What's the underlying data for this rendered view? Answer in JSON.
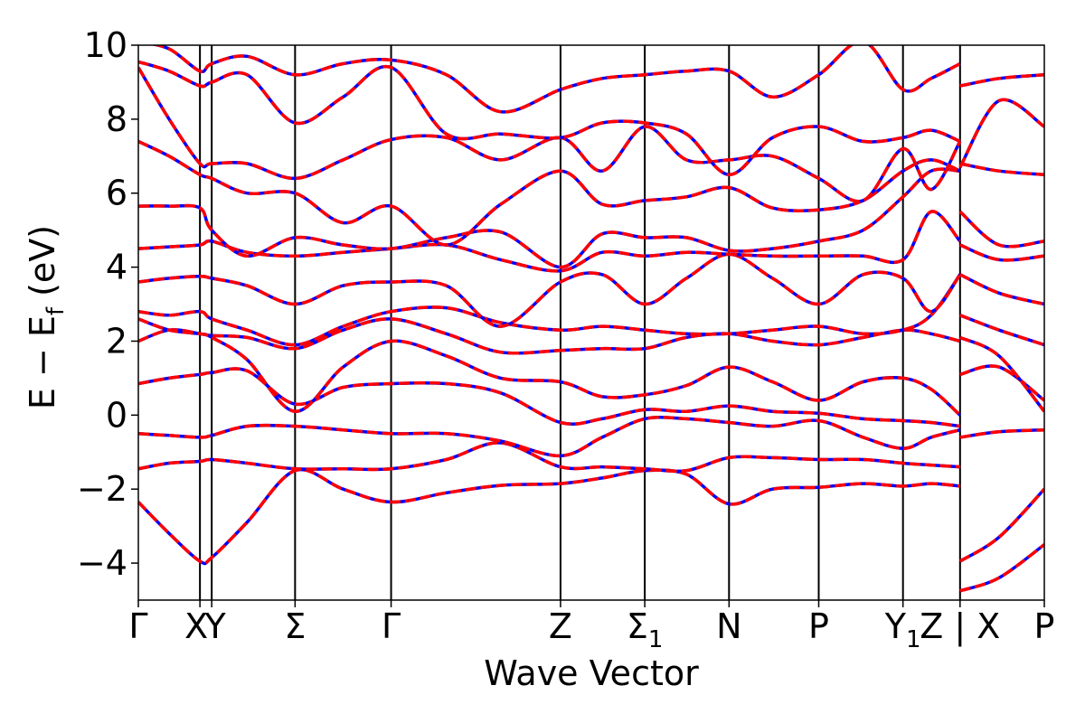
{
  "chart_data": {
    "type": "line",
    "title": "",
    "xlabel": "Wave Vector",
    "ylabel": "E − E_f (eV)",
    "ylabel_parts": {
      "base": "E − E",
      "sub": "f",
      "unit": "(eV)"
    },
    "ylim": [
      -5,
      10
    ],
    "yticks": [
      -4,
      -2,
      0,
      2,
      4,
      6,
      8,
      10
    ],
    "ytick_labels": [
      "−4",
      "−2",
      "0",
      "2",
      "4",
      "6",
      "8",
      "10"
    ],
    "grid": false,
    "legend": "none",
    "colors": {
      "band_solid": "#ff0000",
      "band_dashed": "#0000ff",
      "kpath_line": "#000000"
    },
    "kpoints": [
      {
        "x": 0.0,
        "label": "Γ"
      },
      {
        "x": 0.068,
        "label": "X"
      },
      {
        "x": 0.081,
        "label": "Y"
      },
      {
        "x": 0.173,
        "label": "Σ"
      },
      {
        "x": 0.279,
        "label": "Γ"
      },
      {
        "x": 0.466,
        "label": "Z"
      },
      {
        "x": 0.559,
        "label": "Σ",
        "sub": "1"
      },
      {
        "x": 0.652,
        "label": "N"
      },
      {
        "x": 0.751,
        "label": "P"
      },
      {
        "x": 0.844,
        "label": "Y",
        "sub": "1"
      },
      {
        "x": 0.907,
        "label": "Z | X"
      },
      {
        "x": 1.0,
        "label": "P"
      }
    ],
    "series": [
      {
        "x": [
          0.0,
          0.034,
          0.068,
          0.081,
          0.12,
          0.173,
          0.226,
          0.279,
          0.34,
          0.4,
          0.466,
          0.512,
          0.559,
          0.605,
          0.652,
          0.7,
          0.751,
          0.8,
          0.844,
          0.875,
          0.907
        ],
        "y": [
          -2.35,
          -3.2,
          -3.95,
          -3.85,
          -2.9,
          -1.5,
          -2.0,
          -2.35,
          -2.1,
          -1.9,
          -1.85,
          -1.7,
          -1.5,
          -1.6,
          -2.4,
          -2.0,
          -1.95,
          -1.85,
          -1.92,
          -1.85,
          -1.92
        ]
      },
      {
        "x": [
          0.0,
          0.034,
          0.068,
          0.081,
          0.12,
          0.173,
          0.226,
          0.279,
          0.34,
          0.4,
          0.466,
          0.512,
          0.559,
          0.605,
          0.652,
          0.7,
          0.751,
          0.8,
          0.844,
          0.875,
          0.907
        ],
        "y": [
          -1.45,
          -1.3,
          -1.25,
          -1.2,
          -1.3,
          -1.45,
          -1.45,
          -1.45,
          -1.2,
          -0.75,
          -1.4,
          -1.4,
          -1.45,
          -1.5,
          -1.15,
          -1.15,
          -1.2,
          -1.2,
          -1.3,
          -1.35,
          -1.4
        ]
      },
      {
        "x": [
          0.0,
          0.034,
          0.068,
          0.081,
          0.12,
          0.173,
          0.226,
          0.279,
          0.34,
          0.4,
          0.466,
          0.512,
          0.559,
          0.605,
          0.652,
          0.7,
          0.751,
          0.8,
          0.844,
          0.875,
          0.907
        ],
        "y": [
          -0.5,
          -0.55,
          -0.6,
          -0.55,
          -0.3,
          -0.3,
          -0.4,
          -0.5,
          -0.5,
          -0.7,
          -1.1,
          -0.6,
          -0.1,
          -0.1,
          -0.2,
          -0.3,
          -0.15,
          -0.6,
          -0.9,
          -0.6,
          -0.4
        ]
      },
      {
        "x": [
          0.0,
          0.034,
          0.068,
          0.081,
          0.12,
          0.173,
          0.226,
          0.279,
          0.34,
          0.4,
          0.466,
          0.512,
          0.559,
          0.605,
          0.652,
          0.7,
          0.751,
          0.8,
          0.844,
          0.875,
          0.907
        ],
        "y": [
          0.85,
          1.0,
          1.1,
          1.15,
          1.2,
          0.3,
          0.75,
          0.85,
          0.85,
          0.6,
          -0.2,
          -0.1,
          0.15,
          0.1,
          0.25,
          0.1,
          0.05,
          -0.1,
          -0.15,
          -0.2,
          -0.3
        ]
      },
      {
        "x": [
          0.0,
          0.034,
          0.068,
          0.081,
          0.12,
          0.173,
          0.226,
          0.279,
          0.34,
          0.4,
          0.466,
          0.512,
          0.559,
          0.605,
          0.652,
          0.7,
          0.751,
          0.8,
          0.844,
          0.875,
          0.907
        ],
        "y": [
          2.0,
          2.3,
          2.2,
          2.1,
          1.5,
          0.1,
          1.3,
          2.0,
          1.6,
          1.0,
          0.9,
          0.5,
          0.55,
          0.8,
          1.3,
          0.9,
          0.4,
          0.9,
          1.0,
          0.7,
          0.0
        ]
      },
      {
        "x": [
          0.0,
          0.034,
          0.068,
          0.081,
          0.12,
          0.173,
          0.226,
          0.279,
          0.34,
          0.4,
          0.466,
          0.512,
          0.559,
          0.605,
          0.652,
          0.7,
          0.751,
          0.8,
          0.844,
          0.875,
          0.907
        ],
        "y": [
          2.6,
          2.3,
          2.2,
          2.15,
          2.1,
          1.8,
          2.3,
          2.6,
          2.2,
          1.7,
          1.75,
          1.8,
          1.8,
          2.1,
          2.2,
          2.0,
          1.9,
          2.1,
          2.3,
          2.2,
          2.0
        ]
      },
      {
        "x": [
          0.0,
          0.034,
          0.068,
          0.081,
          0.12,
          0.173,
          0.226,
          0.279,
          0.34,
          0.4,
          0.466,
          0.512,
          0.559,
          0.605,
          0.652,
          0.7,
          0.751,
          0.8,
          0.844,
          0.875,
          0.907
        ],
        "y": [
          2.8,
          2.7,
          2.8,
          2.6,
          2.3,
          1.9,
          2.4,
          2.8,
          2.9,
          2.5,
          2.3,
          2.4,
          2.3,
          2.2,
          2.2,
          2.3,
          2.4,
          2.2,
          2.3,
          2.7,
          3.8
        ]
      },
      {
        "x": [
          0.0,
          0.034,
          0.068,
          0.081,
          0.12,
          0.173,
          0.226,
          0.279,
          0.34,
          0.4,
          0.466,
          0.512,
          0.559,
          0.605,
          0.652,
          0.7,
          0.751,
          0.8,
          0.844,
          0.875,
          0.907
        ],
        "y": [
          3.6,
          3.7,
          3.75,
          3.7,
          3.5,
          3.0,
          3.5,
          3.6,
          3.5,
          2.4,
          3.6,
          3.8,
          3.0,
          3.7,
          4.35,
          3.7,
          3.0,
          3.8,
          3.7,
          2.8,
          3.8
        ]
      },
      {
        "x": [
          0.0,
          0.034,
          0.068,
          0.081,
          0.12,
          0.173,
          0.226,
          0.279,
          0.34,
          0.4,
          0.466,
          0.512,
          0.559,
          0.605,
          0.652,
          0.7,
          0.751,
          0.8,
          0.844,
          0.875,
          0.907
        ],
        "y": [
          4.5,
          4.55,
          4.6,
          4.7,
          4.4,
          4.3,
          4.4,
          4.5,
          4.6,
          4.2,
          3.9,
          4.4,
          4.3,
          4.4,
          4.35,
          4.3,
          4.3,
          4.3,
          4.2,
          5.5,
          4.7
        ]
      },
      {
        "x": [
          0.0,
          0.034,
          0.068,
          0.081,
          0.12,
          0.173,
          0.226,
          0.279,
          0.34,
          0.4,
          0.466,
          0.512,
          0.559,
          0.605,
          0.652,
          0.7,
          0.751,
          0.8,
          0.844,
          0.875,
          0.907
        ],
        "y": [
          5.65,
          5.65,
          5.6,
          5.0,
          4.3,
          4.8,
          4.6,
          4.5,
          4.8,
          4.95,
          4.0,
          4.9,
          4.8,
          4.8,
          4.45,
          4.5,
          4.7,
          5.0,
          5.9,
          6.6,
          6.6
        ]
      },
      {
        "x": [
          0.0,
          0.034,
          0.068,
          0.081,
          0.12,
          0.173,
          0.226,
          0.279,
          0.34,
          0.4,
          0.466,
          0.512,
          0.559,
          0.605,
          0.652,
          0.7,
          0.751,
          0.8,
          0.844,
          0.875,
          0.907
        ],
        "y": [
          7.4,
          7.0,
          6.5,
          6.4,
          6.0,
          6.0,
          5.2,
          5.65,
          4.6,
          5.7,
          6.6,
          5.7,
          5.8,
          5.9,
          6.15,
          5.6,
          5.55,
          5.8,
          6.6,
          6.9,
          6.6
        ]
      },
      {
        "x": [
          0.0,
          0.034,
          0.068,
          0.081,
          0.12,
          0.173,
          0.226,
          0.279,
          0.34,
          0.4,
          0.466,
          0.512,
          0.559,
          0.605,
          0.652,
          0.7,
          0.751,
          0.8,
          0.844,
          0.875,
          0.907
        ],
        "y": [
          9.4,
          8.0,
          6.8,
          6.8,
          6.8,
          6.4,
          6.9,
          7.45,
          7.5,
          6.9,
          7.5,
          6.6,
          7.8,
          6.9,
          6.9,
          7.0,
          6.4,
          5.8,
          7.2,
          6.1,
          7.4
        ]
      },
      {
        "x": [
          0.0,
          0.034,
          0.068,
          0.081,
          0.12,
          0.173,
          0.226,
          0.279,
          0.34,
          0.4,
          0.466,
          0.512,
          0.559,
          0.605,
          0.652,
          0.7,
          0.751,
          0.8,
          0.844,
          0.875,
          0.907
        ],
        "y": [
          9.55,
          9.3,
          8.9,
          9.0,
          9.2,
          7.9,
          8.6,
          9.4,
          7.6,
          7.6,
          7.5,
          7.9,
          7.9,
          7.6,
          6.5,
          7.5,
          7.8,
          7.4,
          7.5,
          7.7,
          7.4
        ]
      },
      {
        "x": [
          0.0,
          0.034,
          0.068,
          0.081,
          0.12,
          0.173,
          0.226,
          0.279,
          0.34,
          0.4,
          0.466,
          0.512,
          0.559,
          0.605,
          0.652,
          0.7,
          0.751,
          0.8,
          0.844,
          0.875,
          0.907
        ],
        "y": [
          10.1,
          9.9,
          9.3,
          9.5,
          9.7,
          9.2,
          9.5,
          9.6,
          9.2,
          8.2,
          8.8,
          9.1,
          9.2,
          9.3,
          9.3,
          8.6,
          9.2,
          10.1,
          8.8,
          9.1,
          9.5
        ]
      },
      {
        "x": [
          0.907,
          0.95,
          1.0
        ],
        "y": [
          -4.75,
          -4.4,
          -3.5
        ]
      },
      {
        "x": [
          0.907,
          0.95,
          1.0
        ],
        "y": [
          -3.95,
          -3.3,
          -2.0
        ]
      },
      {
        "x": [
          0.907,
          0.95,
          1.0
        ],
        "y": [
          -0.6,
          -0.45,
          -0.4
        ]
      },
      {
        "x": [
          0.907,
          0.95,
          1.0
        ],
        "y": [
          1.1,
          1.3,
          0.4
        ]
      },
      {
        "x": [
          0.907,
          0.95,
          1.0
        ],
        "y": [
          2.1,
          1.6,
          0.1
        ]
      },
      {
        "x": [
          0.907,
          0.95,
          1.0
        ],
        "y": [
          2.7,
          2.3,
          1.9
        ]
      },
      {
        "x": [
          0.907,
          0.95,
          1.0
        ],
        "y": [
          3.8,
          3.3,
          3.0
        ]
      },
      {
        "x": [
          0.907,
          0.95,
          1.0
        ],
        "y": [
          4.6,
          4.2,
          4.3
        ]
      },
      {
        "x": [
          0.907,
          0.95,
          1.0
        ],
        "y": [
          5.5,
          4.6,
          4.7
        ]
      },
      {
        "x": [
          0.907,
          0.95,
          1.0
        ],
        "y": [
          6.8,
          6.6,
          6.5
        ]
      },
      {
        "x": [
          0.907,
          0.95,
          1.0
        ],
        "y": [
          8.9,
          9.1,
          9.2
        ]
      },
      {
        "x": [
          0.907,
          0.95,
          1.0
        ],
        "y": [
          6.7,
          8.5,
          7.8
        ]
      }
    ]
  }
}
